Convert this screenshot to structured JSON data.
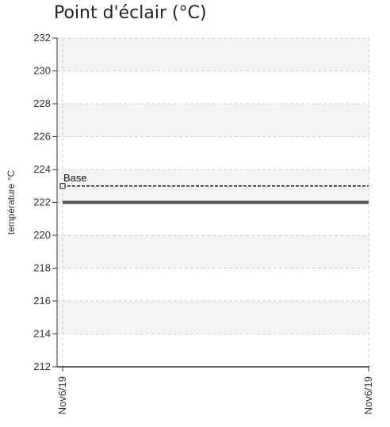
{
  "chart_data": {
    "type": "line",
    "title": "Point d'éclair (°C)",
    "ylabel": "température °C",
    "xlabel": "",
    "ylim": [
      212,
      232
    ],
    "yticks": [
      212,
      214,
      216,
      218,
      220,
      222,
      224,
      226,
      228,
      230,
      232
    ],
    "x": [
      "Nov6/19",
      "Nov6/19"
    ],
    "grid": true,
    "series": [
      {
        "values": [
          222,
          222
        ],
        "color": "#555555"
      }
    ],
    "reference_lines": [
      {
        "name": "Base",
        "value": 223,
        "style": "dashed",
        "color": "#111111"
      }
    ],
    "band_color": "#f4f4f4"
  }
}
